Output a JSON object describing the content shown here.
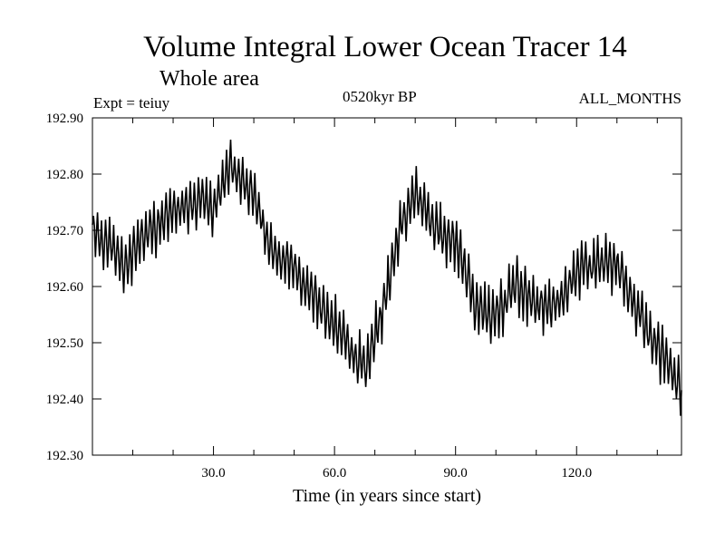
{
  "chart_data": {
    "type": "line",
    "title": "Volume Integral Lower Ocean Tracer 14",
    "subtitle": "Whole area",
    "expt_label": "Expt = teiuy",
    "period_label": "0520kyr BP",
    "months_label": "ALL_MONTHS",
    "xlabel": "Time (in years since start)",
    "ylabel": "",
    "xlim": [
      0,
      146
    ],
    "ylim": [
      192.3,
      192.9
    ],
    "x_ticks": [
      30,
      60,
      90,
      120
    ],
    "x_tick_labels": [
      "30.0",
      "60.0",
      "90.0",
      "120.0"
    ],
    "x_minor_step": 10,
    "y_ticks": [
      192.3,
      192.4,
      192.5,
      192.6,
      192.7,
      192.8,
      192.9
    ],
    "y_tick_labels": [
      "192.30",
      "192.40",
      "192.50",
      "192.60",
      "192.70",
      "192.80",
      "192.90"
    ],
    "trend": {
      "x": [
        0,
        5,
        8,
        12,
        20,
        27,
        30,
        34,
        40,
        45,
        50,
        58,
        62,
        66,
        68,
        72,
        76,
        80,
        85,
        90,
        93,
        95,
        100,
        105,
        110,
        113,
        116,
        120,
        125,
        130,
        135,
        140,
        146
      ],
      "y": [
        192.7,
        192.67,
        192.63,
        192.69,
        192.73,
        192.76,
        192.74,
        192.82,
        192.76,
        192.66,
        192.63,
        192.55,
        192.51,
        192.47,
        192.46,
        192.56,
        192.7,
        192.77,
        192.7,
        192.68,
        192.62,
        192.56,
        192.55,
        192.6,
        192.57,
        192.56,
        192.57,
        192.63,
        192.64,
        192.64,
        192.56,
        192.49,
        192.42
      ]
    },
    "oscillation": {
      "period_years": 1.0,
      "amplitude": 0.04,
      "samples_per_year": 4
    },
    "series": [
      {
        "name": "Volume Integral Lower Ocean Tracer 14",
        "color": "#000000"
      }
    ]
  }
}
